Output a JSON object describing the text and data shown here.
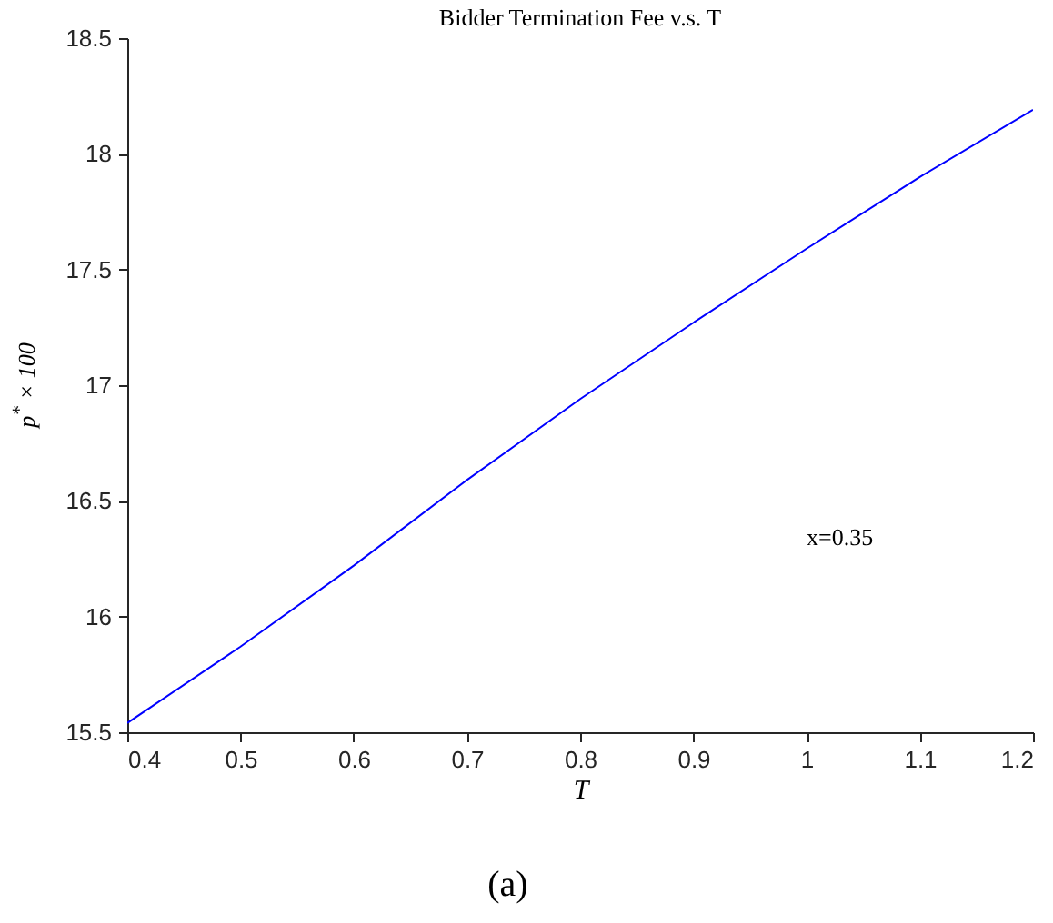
{
  "chart_data": {
    "type": "line",
    "title": "Bidder Termination Fee v.s. T",
    "xlabel": "T",
    "ylabel": "p$^{*}$ × 100",
    "x": [
      0.4,
      0.5,
      0.6,
      0.7,
      0.8,
      0.9,
      1.0,
      1.1,
      1.2
    ],
    "series": [
      {
        "color": "#0000ff",
        "values": [
          15.54,
          15.87,
          16.22,
          16.59,
          16.94,
          17.27,
          17.59,
          17.9,
          18.19
        ]
      }
    ],
    "xlim": [
      0.4,
      1.2
    ],
    "xticks": [
      0.4,
      0.5,
      0.6,
      0.7,
      0.8,
      0.9,
      1,
      1.1,
      1.2
    ],
    "ylim": [
      15.5,
      18.5
    ],
    "yticks": [
      15.5,
      16,
      16.5,
      17,
      17.5,
      18,
      18.5
    ],
    "grid": false,
    "marker": "none",
    "line_style": "solid",
    "annotations": [
      "x=0.35",
      "(a)"
    ]
  }
}
